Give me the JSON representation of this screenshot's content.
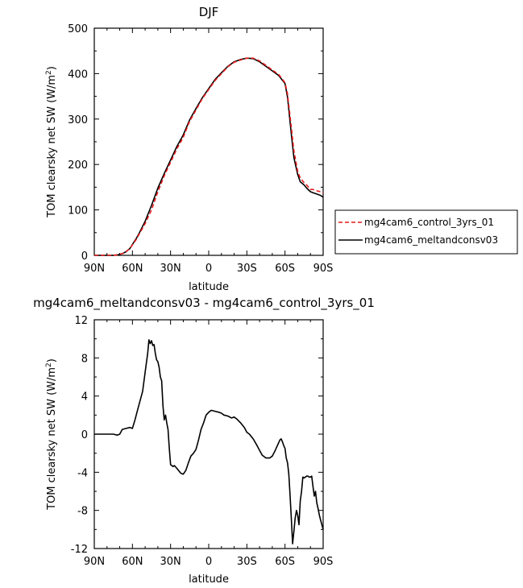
{
  "chart_data": [
    {
      "type": "line",
      "title": "DJF",
      "xlabel": "latitude",
      "ylabel": "TOM clearsky net SW (W/m²)",
      "ylabel_main": "TOM clearsky net SW (W/m",
      "ylabel_sup": "2",
      "ylabel_end": ")",
      "xlim": [
        -90,
        90
      ],
      "ylim": [
        0,
        500
      ],
      "xticks": [
        -90,
        -60,
        -30,
        0,
        30,
        60,
        90
      ],
      "xtick_labels": [
        "90N",
        "60N",
        "30N",
        "0",
        "30S",
        "60S",
        "90S"
      ],
      "yticks": [
        0,
        100,
        200,
        300,
        400,
        500
      ],
      "ytick_labels": [
        "0",
        "100",
        "200",
        "300",
        "400",
        "500"
      ],
      "legend": {
        "placement": "right",
        "entries": [
          {
            "label": "mg4cam6_control_3yrs_01",
            "color": "#e41a1c",
            "dash": true
          },
          {
            "label": "mg4cam6_meltandconsv03",
            "color": "#000000",
            "dash": false
          }
        ]
      },
      "series": [
        {
          "name": "mg4cam6_control_3yrs_01",
          "color": "#e41a1c",
          "dash": true,
          "x": [
            -90,
            -80,
            -75,
            -72,
            -70,
            -67,
            -65,
            -62,
            -60,
            -57,
            -55,
            -50,
            -45,
            -40,
            -35,
            -30,
            -25,
            -20,
            -15,
            -10,
            -5,
            0,
            5,
            10,
            15,
            20,
            25,
            30,
            35,
            40,
            45,
            50,
            55,
            60,
            62,
            65,
            67,
            70,
            72,
            75,
            77,
            80,
            82,
            85,
            88,
            90
          ],
          "y": [
            0,
            0,
            0,
            1,
            2,
            5,
            8,
            15,
            23,
            35,
            45,
            70,
            100,
            140,
            175,
            205,
            235,
            260,
            295,
            320,
            345,
            365,
            385,
            400,
            415,
            425,
            430,
            434,
            434,
            428,
            418,
            408,
            398,
            380,
            355,
            280,
            230,
            185,
            170,
            160,
            155,
            145,
            145,
            142,
            140,
            137
          ]
        },
        {
          "name": "mg4cam6_meltandconsv03",
          "color": "#000000",
          "dash": false,
          "x": [
            -90,
            -80,
            -75,
            -72,
            -70,
            -67,
            -65,
            -62,
            -60,
            -57,
            -55,
            -50,
            -45,
            -40,
            -35,
            -30,
            -25,
            -20,
            -15,
            -10,
            -5,
            0,
            5,
            10,
            15,
            20,
            25,
            30,
            35,
            40,
            45,
            50,
            55,
            60,
            62,
            65,
            67,
            70,
            72,
            75,
            77,
            80,
            82,
            85,
            88,
            90
          ],
          "y": [
            0,
            0,
            0,
            1,
            2,
            5,
            8,
            15,
            24,
            37,
            47,
            75,
            110,
            148,
            180,
            210,
            240,
            265,
            298,
            323,
            347,
            367,
            387,
            402,
            416,
            426,
            431,
            434,
            433,
            426,
            416,
            406,
            396,
            378,
            348,
            265,
            215,
            178,
            162,
            155,
            148,
            140,
            138,
            135,
            132,
            128
          ]
        }
      ]
    },
    {
      "type": "line",
      "title": "mg4cam6_meltandconsv03 - mg4cam6_control_3yrs_01",
      "xlabel": "latitude",
      "ylabel": "TOM clearsky net SW (W/m²)",
      "ylabel_main": "TOM clearsky net SW (W/m",
      "ylabel_sup": "2",
      "ylabel_end": ")",
      "xlim": [
        -90,
        90
      ],
      "ylim": [
        -12,
        12
      ],
      "xticks": [
        -90,
        -60,
        -30,
        0,
        30,
        60,
        90
      ],
      "xtick_labels": [
        "90N",
        "60N",
        "30N",
        "0",
        "30S",
        "60S",
        "90S"
      ],
      "yticks": [
        -12,
        -8,
        -4,
        0,
        4,
        8,
        12
      ],
      "ytick_labels": [
        "-12",
        "-8",
        "-4",
        "0",
        "4",
        "8",
        "12"
      ],
      "series": [
        {
          "color": "#000000",
          "dash": false,
          "x": [
            -90,
            -80,
            -75,
            -72,
            -70,
            -68,
            -65,
            -62,
            -60,
            -58,
            -56,
            -54,
            -52,
            -50,
            -48,
            -47,
            -46,
            -45,
            -44,
            -43,
            -42,
            -41,
            -40,
            -39,
            -38,
            -37,
            -36,
            -35,
            -34,
            -33,
            -32,
            -31,
            -30,
            -29,
            -28,
            -27,
            -25,
            -22,
            -20,
            -18,
            -16,
            -14,
            -12,
            -10,
            -8,
            -6,
            -4,
            -2,
            0,
            2,
            5,
            8,
            10,
            12,
            15,
            18,
            20,
            22,
            25,
            28,
            30,
            32,
            35,
            38,
            40,
            42,
            45,
            48,
            50,
            52,
            54,
            56,
            57,
            58,
            59,
            60,
            61,
            62,
            63,
            64,
            65,
            66,
            67,
            68,
            69,
            70,
            71,
            72,
            73,
            74,
            75,
            76,
            77,
            78,
            79,
            80,
            81,
            82,
            83,
            84,
            85,
            86,
            87,
            88,
            89,
            90
          ],
          "y": [
            0,
            0,
            0,
            -0.1,
            0,
            0.5,
            0.6,
            0.7,
            0.6,
            1.5,
            2.5,
            3.5,
            4.5,
            6.5,
            8.5,
            9.9,
            9.5,
            9.8,
            9.3,
            9.4,
            8.5,
            7.8,
            7.6,
            7.0,
            6.0,
            5.6,
            3.0,
            1.5,
            2.0,
            1.2,
            0.5,
            -1.5,
            -3.2,
            -3.3,
            -3.4,
            -3.3,
            -3.6,
            -4.1,
            -4.2,
            -3.8,
            -3.0,
            -2.3,
            -2.0,
            -1.6,
            -0.6,
            0.5,
            1.2,
            2.0,
            2.3,
            2.5,
            2.4,
            2.3,
            2.2,
            2.0,
            1.9,
            1.7,
            1.8,
            1.6,
            1.2,
            0.7,
            0.2,
            0.0,
            -0.5,
            -1.2,
            -1.7,
            -2.2,
            -2.5,
            -2.5,
            -2.3,
            -1.8,
            -1.2,
            -0.6,
            -0.5,
            -0.8,
            -1.2,
            -1.5,
            -2.5,
            -3.0,
            -4.2,
            -6.5,
            -9.0,
            -11.5,
            -10.2,
            -8.8,
            -8.0,
            -8.5,
            -9.5,
            -7.0,
            -6.0,
            -4.5,
            -4.6,
            -4.5,
            -4.4,
            -4.4,
            -4.5,
            -4.5,
            -4.4,
            -5.5,
            -6.5,
            -6.0,
            -7.2,
            -7.8,
            -8.5,
            -9.0,
            -9.5,
            -10.0
          ]
        }
      ]
    }
  ]
}
